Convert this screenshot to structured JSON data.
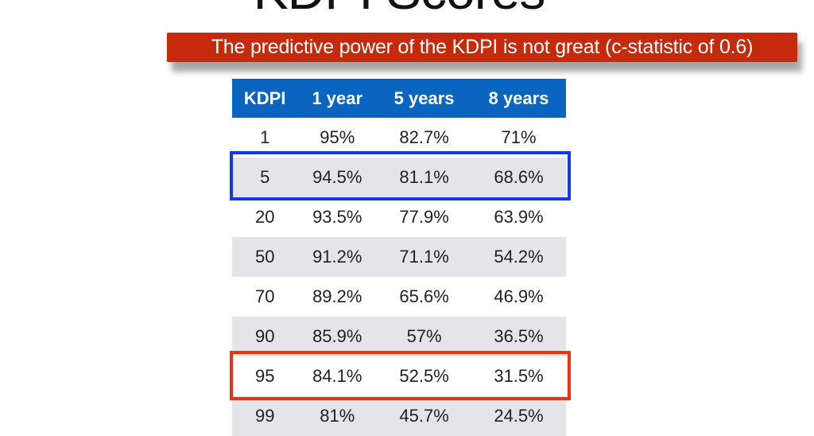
{
  "title": "KDPI Scores",
  "banner": "The predictive power of the KDPI is not great (c-statistic of 0.6)",
  "table": {
    "headers": [
      "KDPI",
      "1 year",
      "5 years",
      "8 years"
    ],
    "rows": [
      [
        "1",
        "95%",
        "82.7%",
        "71%"
      ],
      [
        "5",
        "94.5%",
        "81.1%",
        "68.6%"
      ],
      [
        "20",
        "93.5%",
        "77.9%",
        "63.9%"
      ],
      [
        "50",
        "91.2%",
        "71.1%",
        "54.2%"
      ],
      [
        "70",
        "89.2%",
        "65.6%",
        "46.9%"
      ],
      [
        "90",
        "85.9%",
        "57%",
        "36.5%"
      ],
      [
        "95",
        "84.1%",
        "52.5%",
        "31.5%"
      ],
      [
        "99",
        "81%",
        "45.7%",
        "24.5%"
      ]
    ]
  },
  "highlights": {
    "blue_row": "5",
    "red_row": "95",
    "blue": "#1438e6",
    "red": "#ee3313"
  },
  "colors": {
    "header": "#0a65c0",
    "banner": "#c52a0c",
    "stripe": "#e4e4e9"
  }
}
